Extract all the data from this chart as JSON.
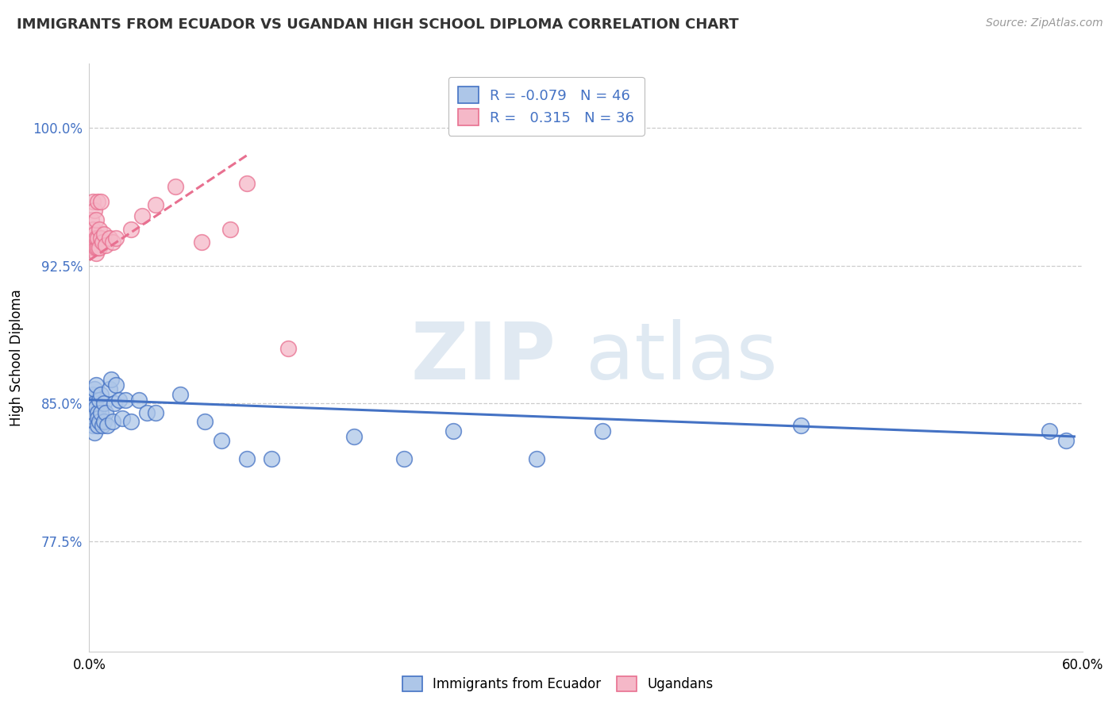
{
  "title": "IMMIGRANTS FROM ECUADOR VS UGANDAN HIGH SCHOOL DIPLOMA CORRELATION CHART",
  "source": "Source: ZipAtlas.com",
  "xlim": [
    0.0,
    0.6
  ],
  "ylim": [
    0.715,
    1.035
  ],
  "ytick_vals": [
    0.775,
    0.85,
    0.925,
    1.0
  ],
  "xtick_vals": [
    0.0,
    0.6
  ],
  "xtick_labels": [
    "0.0%",
    "60.0%"
  ],
  "ytick_labels": [
    "77.5%",
    "85.0%",
    "92.5%",
    "100.0%"
  ],
  "ylabel": "High School Diploma",
  "watermark_zip": "ZIP",
  "watermark_atlas": "atlas",
  "color_blue": "#adc6e8",
  "color_pink": "#f5b8c8",
  "line_blue": "#4472c4",
  "line_pink": "#e87090",
  "blue_scatter_x": [
    0.001,
    0.001,
    0.002,
    0.002,
    0.003,
    0.003,
    0.003,
    0.004,
    0.004,
    0.005,
    0.005,
    0.005,
    0.006,
    0.006,
    0.007,
    0.007,
    0.008,
    0.009,
    0.009,
    0.01,
    0.011,
    0.012,
    0.013,
    0.014,
    0.015,
    0.016,
    0.018,
    0.02,
    0.022,
    0.025,
    0.03,
    0.035,
    0.04,
    0.055,
    0.07,
    0.08,
    0.095,
    0.11,
    0.16,
    0.19,
    0.22,
    0.27,
    0.31,
    0.43,
    0.58,
    0.59
  ],
  "blue_scatter_y": [
    0.852,
    0.843,
    0.855,
    0.838,
    0.85,
    0.858,
    0.834,
    0.86,
    0.848,
    0.845,
    0.842,
    0.838,
    0.852,
    0.84,
    0.855,
    0.845,
    0.838,
    0.85,
    0.84,
    0.845,
    0.838,
    0.858,
    0.863,
    0.84,
    0.85,
    0.86,
    0.852,
    0.842,
    0.852,
    0.84,
    0.852,
    0.845,
    0.845,
    0.855,
    0.84,
    0.83,
    0.82,
    0.82,
    0.832,
    0.82,
    0.835,
    0.82,
    0.835,
    0.838,
    0.835,
    0.83
  ],
  "pink_scatter_x": [
    0.001,
    0.001,
    0.001,
    0.002,
    0.002,
    0.002,
    0.002,
    0.003,
    0.003,
    0.003,
    0.003,
    0.004,
    0.004,
    0.004,
    0.004,
    0.005,
    0.005,
    0.005,
    0.006,
    0.006,
    0.007,
    0.007,
    0.008,
    0.009,
    0.01,
    0.012,
    0.014,
    0.016,
    0.025,
    0.032,
    0.04,
    0.052,
    0.068,
    0.085,
    0.095,
    0.12
  ],
  "pink_scatter_y": [
    0.935,
    0.94,
    0.95,
    0.936,
    0.94,
    0.945,
    0.96,
    0.935,
    0.938,
    0.942,
    0.955,
    0.932,
    0.935,
    0.94,
    0.95,
    0.935,
    0.94,
    0.96,
    0.935,
    0.945,
    0.94,
    0.96,
    0.938,
    0.942,
    0.936,
    0.94,
    0.938,
    0.94,
    0.945,
    0.952,
    0.958,
    0.968,
    0.938,
    0.945,
    0.97,
    0.88
  ],
  "blue_line_x": [
    0.0,
    0.595
  ],
  "blue_line_y": [
    0.852,
    0.832
  ],
  "pink_line_x": [
    0.0,
    0.095
  ],
  "pink_line_y": [
    0.928,
    0.985
  ],
  "legend_r1_color": "R = -0.079",
  "legend_n1": "N = 46",
  "legend_r2_color": " 0.315",
  "legend_n2": "N = 36"
}
